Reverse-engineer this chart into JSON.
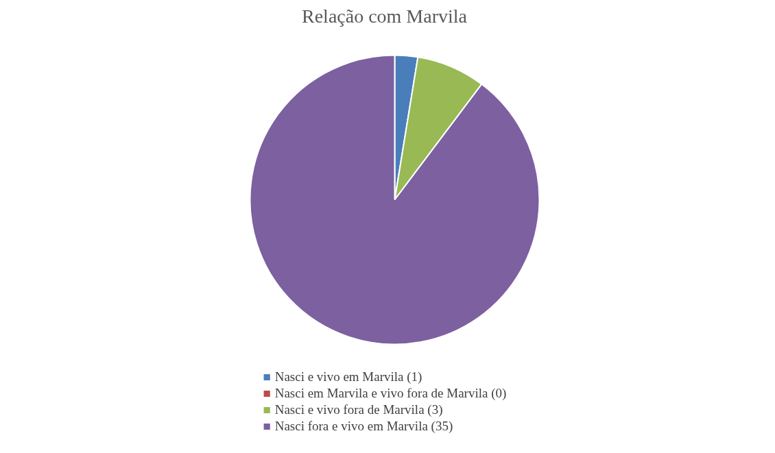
{
  "chart_data": {
    "type": "pie",
    "title": "Relação com Marvila",
    "categories": [
      "Nasci e vivo em Marvila (1)",
      "Nasci em Marvila e vivo fora de Marvila (0)",
      "Nasci e vivo fora de Marvila (3)",
      "Nasci fora e vivo em Marvila (35)"
    ],
    "values": [
      1,
      0,
      3,
      35
    ],
    "colors": [
      "#4a7ebb",
      "#be4b48",
      "#98b954",
      "#7d60a0"
    ],
    "legend": "bottom"
  }
}
